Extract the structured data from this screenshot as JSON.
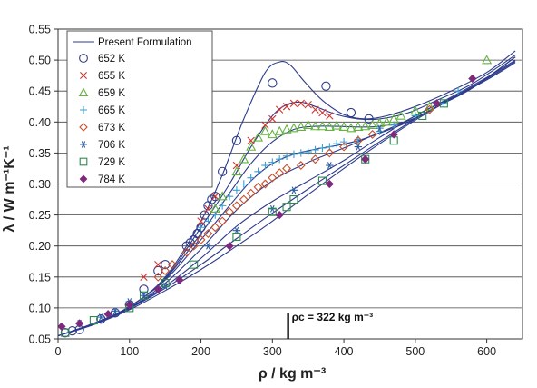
{
  "chart_data": {
    "type": "scatter",
    "title": "",
    "xlabel": "ρ / kg m⁻³",
    "ylabel": "λ / W m⁻¹K⁻¹",
    "xlim": [
      0,
      650
    ],
    "ylim": [
      0.05,
      0.55
    ],
    "x_ticks": [
      "0",
      "100",
      "200",
      "300",
      "400",
      "500",
      "600"
    ],
    "y_ticks": [
      "0.05",
      "0.10",
      "0.15",
      "0.20",
      "0.25",
      "0.30",
      "0.35",
      "0.40",
      "0.45",
      "0.50",
      "0.55"
    ],
    "grid": "horizontal",
    "legend_position": "top-left",
    "annotation": {
      "text": "ρc = 322 kg m⁻³",
      "x": 322
    },
    "line_series": {
      "name": "Present Formulation",
      "curves": [
        {
          "x": [
            0,
            50,
            100,
            150,
            200,
            230,
            260,
            290,
            310,
            325,
            345,
            370,
            400,
            430,
            460,
            500,
            550,
            600,
            640
          ],
          "y": [
            0.055,
            0.075,
            0.102,
            0.15,
            0.24,
            0.315,
            0.405,
            0.48,
            0.497,
            0.492,
            0.465,
            0.435,
            0.412,
            0.405,
            0.41,
            0.425,
            0.45,
            0.48,
            0.515
          ]
        },
        {
          "x": [
            0,
            50,
            100,
            150,
            200,
            240,
            270,
            300,
            320,
            340,
            360,
            390,
            420,
            450,
            490,
            530,
            580,
            640
          ],
          "y": [
            0.055,
            0.075,
            0.102,
            0.148,
            0.23,
            0.3,
            0.36,
            0.41,
            0.428,
            0.432,
            0.425,
            0.412,
            0.405,
            0.405,
            0.415,
            0.435,
            0.462,
            0.508
          ]
        },
        {
          "x": [
            0,
            50,
            100,
            150,
            200,
            240,
            270,
            300,
            330,
            360,
            390,
            420,
            450,
            490,
            530,
            580,
            640
          ],
          "y": [
            0.055,
            0.075,
            0.102,
            0.147,
            0.22,
            0.285,
            0.333,
            0.368,
            0.388,
            0.393,
            0.393,
            0.392,
            0.393,
            0.402,
            0.425,
            0.455,
            0.505
          ]
        },
        {
          "x": [
            0,
            50,
            100,
            150,
            200,
            240,
            270,
            300,
            330,
            360,
            390,
            420,
            450,
            490,
            530,
            580,
            640
          ],
          "y": [
            0.055,
            0.075,
            0.102,
            0.145,
            0.21,
            0.265,
            0.305,
            0.333,
            0.348,
            0.356,
            0.362,
            0.37,
            0.382,
            0.4,
            0.425,
            0.455,
            0.505
          ]
        },
        {
          "x": [
            0,
            50,
            100,
            150,
            200,
            250,
            300,
            350,
            400,
            440,
            480,
            520,
            580,
            640
          ],
          "y": [
            0.055,
            0.075,
            0.1,
            0.14,
            0.195,
            0.258,
            0.305,
            0.335,
            0.358,
            0.378,
            0.398,
            0.422,
            0.456,
            0.505
          ]
        },
        {
          "x": [
            0,
            50,
            100,
            150,
            200,
            250,
            300,
            350,
            400,
            450,
            500,
            550,
            600,
            640
          ],
          "y": [
            0.055,
            0.074,
            0.1,
            0.135,
            0.18,
            0.232,
            0.272,
            0.305,
            0.338,
            0.375,
            0.41,
            0.44,
            0.472,
            0.5
          ]
        },
        {
          "x": [
            0,
            50,
            100,
            150,
            200,
            250,
            300,
            350,
            400,
            450,
            500,
            550,
            600,
            640
          ],
          "y": [
            0.055,
            0.074,
            0.099,
            0.132,
            0.17,
            0.212,
            0.253,
            0.292,
            0.33,
            0.368,
            0.405,
            0.438,
            0.47,
            0.498
          ]
        },
        {
          "x": [
            0,
            50,
            100,
            150,
            200,
            250,
            300,
            350,
            400,
            450,
            500,
            550,
            600,
            640
          ],
          "y": [
            0.055,
            0.073,
            0.097,
            0.128,
            0.162,
            0.2,
            0.24,
            0.283,
            0.325,
            0.365,
            0.403,
            0.437,
            0.468,
            0.496
          ]
        }
      ]
    },
    "series": [
      {
        "name": "652 K",
        "marker": "circle",
        "color": "#2d3b8c",
        "x": [
          10,
          20,
          30,
          60,
          80,
          100,
          120,
          140,
          150,
          180,
          185,
          190,
          195,
          200,
          205,
          210,
          215,
          220,
          230,
          250,
          300,
          375,
          410,
          435
        ],
        "y": [
          0.06,
          0.063,
          0.065,
          0.082,
          0.092,
          0.105,
          0.13,
          0.16,
          0.17,
          0.2,
          0.205,
          0.21,
          0.22,
          0.23,
          0.25,
          0.265,
          0.275,
          0.28,
          0.32,
          0.37,
          0.463,
          0.458,
          0.415,
          0.405
        ]
      },
      {
        "name": "655 K",
        "marker": "x",
        "color": "#d0322c",
        "x": [
          120,
          140,
          200,
          210,
          220,
          250,
          270,
          290,
          300,
          310,
          320,
          330,
          340,
          350,
          360,
          370,
          380
        ],
        "y": [
          0.15,
          0.17,
          0.24,
          0.26,
          0.28,
          0.33,
          0.37,
          0.395,
          0.405,
          0.42,
          0.425,
          0.43,
          0.43,
          0.428,
          0.42,
          0.415,
          0.41
        ]
      },
      {
        "name": "659 K",
        "marker": "triangle",
        "color": "#63b33e",
        "x": [
          220,
          230,
          250,
          260,
          270,
          280,
          290,
          300,
          310,
          320,
          330,
          340,
          350,
          360,
          370,
          380,
          390,
          400,
          410,
          420,
          430,
          440,
          450,
          460,
          470,
          480,
          500,
          520,
          600
        ],
        "y": [
          0.26,
          0.28,
          0.32,
          0.34,
          0.36,
          0.375,
          0.385,
          0.38,
          0.385,
          0.388,
          0.39,
          0.392,
          0.395,
          0.393,
          0.393,
          0.392,
          0.394,
          0.392,
          0.39,
          0.392,
          0.393,
          0.395,
          0.398,
          0.4,
          0.405,
          0.41,
          0.418,
          0.425,
          0.5
        ]
      },
      {
        "name": "665 K",
        "marker": "plus",
        "color": "#3c9fd0",
        "x": [
          200,
          210,
          220,
          230,
          240,
          250,
          260,
          270,
          280,
          290,
          300,
          310,
          320,
          330,
          340,
          350,
          360,
          370,
          380,
          390,
          400,
          420,
          450,
          470,
          500,
          540,
          560
        ],
        "y": [
          0.23,
          0.24,
          0.25,
          0.265,
          0.28,
          0.29,
          0.3,
          0.31,
          0.32,
          0.33,
          0.335,
          0.34,
          0.345,
          0.348,
          0.35,
          0.352,
          0.355,
          0.358,
          0.36,
          0.365,
          0.368,
          0.372,
          0.385,
          0.395,
          0.41,
          0.43,
          0.45
        ]
      },
      {
        "name": "673 K",
        "marker": "diamond",
        "color": "#c8502a",
        "x": [
          140,
          150,
          160,
          180,
          190,
          200,
          210,
          220,
          230,
          240,
          250,
          260,
          270,
          280,
          290,
          300,
          310,
          320,
          340,
          360,
          380,
          400,
          420,
          440,
          520
        ],
        "y": [
          0.15,
          0.16,
          0.17,
          0.19,
          0.2,
          0.21,
          0.22,
          0.23,
          0.24,
          0.255,
          0.265,
          0.275,
          0.285,
          0.295,
          0.3,
          0.31,
          0.318,
          0.325,
          0.33,
          0.34,
          0.35,
          0.36,
          0.37,
          0.38,
          0.42
        ]
      },
      {
        "name": "706 K",
        "marker": "asterisk",
        "color": "#2d5fa6",
        "x": [
          30,
          60,
          80,
          100,
          120,
          150,
          210,
          250,
          300,
          330,
          380,
          420,
          450
        ],
        "y": [
          0.075,
          0.085,
          0.095,
          0.11,
          0.12,
          0.135,
          0.2,
          0.225,
          0.26,
          0.29,
          0.33,
          0.36,
          0.39
        ]
      },
      {
        "name": "729 K",
        "marker": "square",
        "color": "#2e8a4e",
        "x": [
          10,
          50,
          100,
          120,
          150,
          190,
          250,
          300,
          320,
          330,
          370,
          430,
          470,
          510,
          540
        ],
        "y": [
          0.06,
          0.08,
          0.1,
          0.12,
          0.14,
          0.17,
          0.215,
          0.255,
          0.263,
          0.275,
          0.305,
          0.34,
          0.37,
          0.41,
          0.43
        ]
      },
      {
        "name": "784 K",
        "marker": "diamond-filled",
        "color": "#7d2a7d",
        "x": [
          5,
          30,
          70,
          100,
          140,
          170,
          240,
          310,
          380,
          430,
          470,
          530,
          580
        ],
        "y": [
          0.07,
          0.075,
          0.09,
          0.105,
          0.13,
          0.145,
          0.2,
          0.25,
          0.3,
          0.34,
          0.38,
          0.43,
          0.47
        ]
      }
    ]
  }
}
